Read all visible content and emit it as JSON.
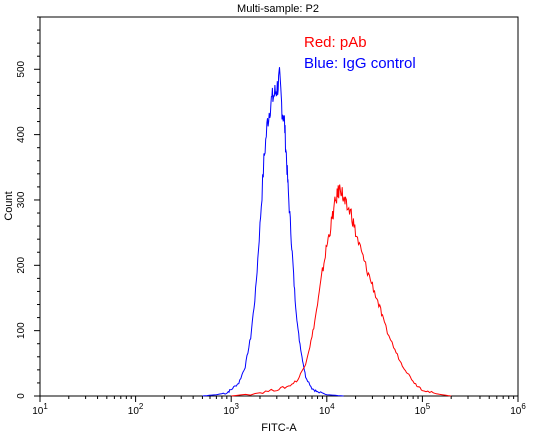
{
  "chart_data": {
    "type": "line",
    "title": "Multi-sample: P2",
    "xlabel": "FITC-A",
    "ylabel": "Count",
    "x_scale": "log",
    "xlim": [
      10,
      1000000
    ],
    "ylim": [
      0,
      580
    ],
    "x_ticks": [
      {
        "base": "10",
        "exp": "1"
      },
      {
        "base": "10",
        "exp": "2"
      },
      {
        "base": "10",
        "exp": "3"
      },
      {
        "base": "10",
        "exp": "4"
      },
      {
        "base": "10",
        "exp": "5"
      },
      {
        "base": "10",
        "exp": "6"
      }
    ],
    "y_ticks": [
      "0",
      "100",
      "200",
      "300",
      "400",
      "500"
    ],
    "grid": false,
    "legend_placement": "top-right",
    "annotations": [
      {
        "text": "Red: pAb",
        "color": "#ff0000"
      },
      {
        "text": "Blue: IgG control",
        "color": "#0000ff"
      }
    ],
    "series": [
      {
        "color": "#0000ff",
        "x": [
          500,
          700,
          900,
          1000,
          1200,
          1400,
          1600,
          1800,
          2000,
          2200,
          2400,
          2600,
          2800,
          3000,
          3200,
          3400,
          3600,
          3800,
          4000,
          4300,
          4600,
          5000,
          5500,
          6000,
          7000,
          8000,
          10000,
          15000
        ],
        "y": [
          0,
          2,
          5,
          10,
          20,
          45,
          90,
          160,
          260,
          360,
          420,
          450,
          460,
          470,
          485,
          440,
          420,
          360,
          300,
          230,
          160,
          100,
          60,
          30,
          12,
          6,
          2,
          0
        ]
      },
      {
        "color": "#ff0000",
        "x": [
          1000,
          2000,
          3000,
          4000,
          5000,
          6000,
          7000,
          8000,
          9000,
          10000,
          11000,
          12000,
          13000,
          14000,
          15000,
          16000,
          18000,
          20000,
          23000,
          26000,
          30000,
          35000,
          40000,
          50000,
          60000,
          70000,
          85000,
          100000,
          130000,
          200000
        ],
        "y": [
          0,
          5,
          10,
          15,
          25,
          50,
          90,
          140,
          190,
          230,
          260,
          290,
          310,
          320,
          300,
          290,
          280,
          250,
          220,
          195,
          170,
          140,
          110,
          75,
          50,
          35,
          18,
          10,
          4,
          0
        ]
      }
    ]
  }
}
